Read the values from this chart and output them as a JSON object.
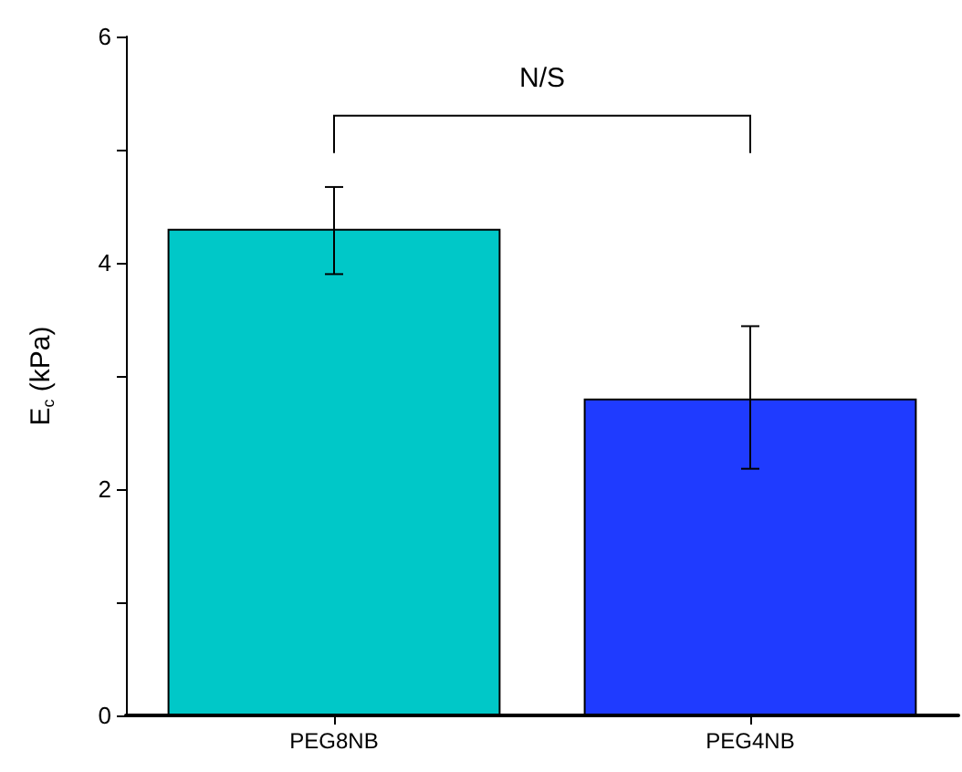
{
  "chart_data": {
    "type": "bar",
    "ylabel": "E$_{c}$ (kPa)",
    "categories": [
      "PEG8NB",
      "PEG4NB"
    ],
    "values": [
      4.3,
      2.8
    ],
    "colors": [
      "#00c8c8",
      "#1f3bff"
    ],
    "errors": [
      [
        3.9,
        4.67
      ],
      [
        2.18,
        3.44
      ]
    ],
    "ylim": [
      0,
      6
    ],
    "yticks": [
      0,
      {
        "value": 1,
        "label": null
      },
      2,
      {
        "value": 3,
        "label": null
      },
      4,
      {
        "value": 5,
        "label": null
      },
      6
    ],
    "annotations": [
      "N/S"
    ],
    "grid": false
  }
}
